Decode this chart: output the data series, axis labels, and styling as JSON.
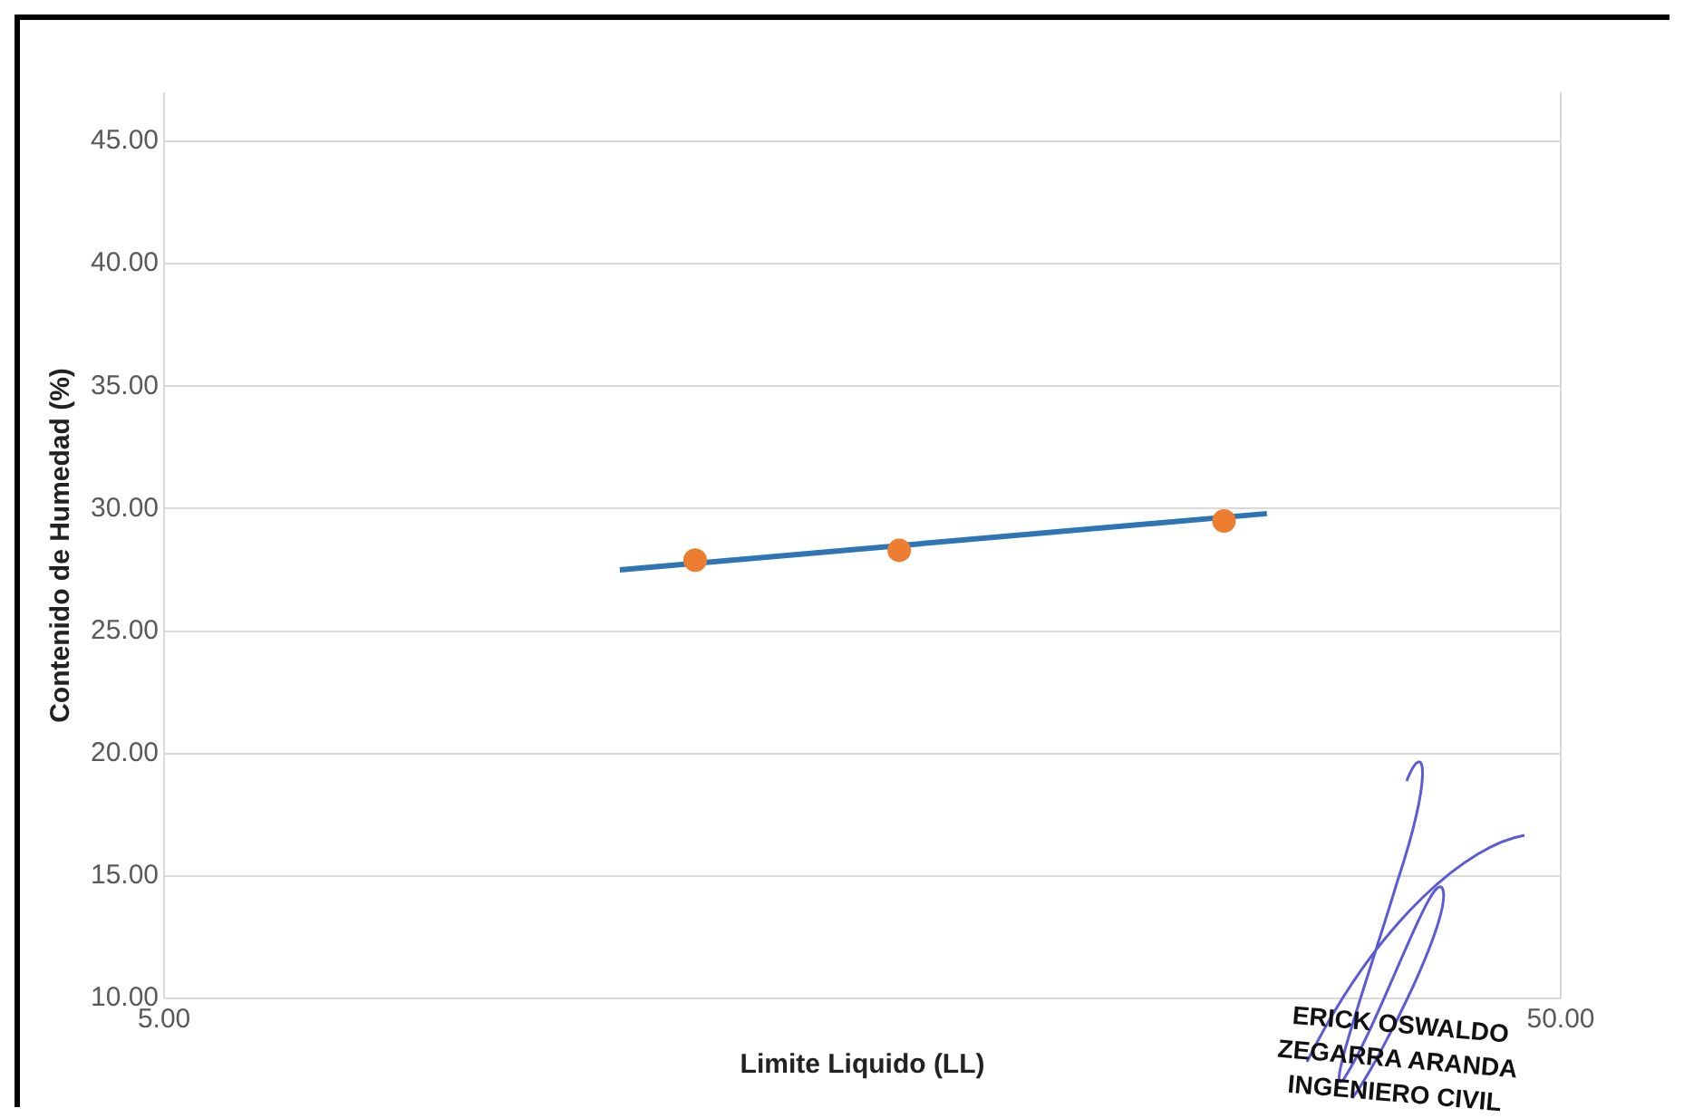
{
  "chart_data": {
    "type": "scatter",
    "xlabel": "Limite Liquido (LL)",
    "ylabel": "Contenido de Humedad (%)",
    "series": [
      {
        "color": "#ed7d31",
        "marker": "circle",
        "x": [
          12.0,
          16.8,
          28.7
        ],
        "values": [
          27.9,
          28.3,
          29.5
        ]
      },
      {
        "type": "line",
        "marker": "none",
        "color": "#2e75b6",
        "x": [
          10.6,
          30.8
        ],
        "values": [
          27.5,
          29.8
        ]
      }
    ],
    "log": "x",
    "xlim": [
      5,
      50
    ],
    "xticks": [
      {
        "value": 5,
        "label": "5.00"
      },
      {
        "value": 50,
        "label": "50.00"
      }
    ],
    "ylim": [
      10,
      47
    ],
    "yticks": [
      {
        "value": 10,
        "label": "10.00"
      },
      {
        "value": 15,
        "label": "15.00"
      },
      {
        "value": 20,
        "label": "20.00"
      },
      {
        "value": 25,
        "label": "25.00"
      },
      {
        "value": 30,
        "label": "30.00"
      },
      {
        "value": 35,
        "label": "35.00"
      },
      {
        "value": 40,
        "label": "40.00"
      },
      {
        "value": 45,
        "label": "45.00"
      }
    ],
    "grid": "y",
    "legend": false,
    "annotations": [
      "ERICK OSWALDO ZEGARRA ARANDA INGENIERO CIVIL"
    ]
  }
}
